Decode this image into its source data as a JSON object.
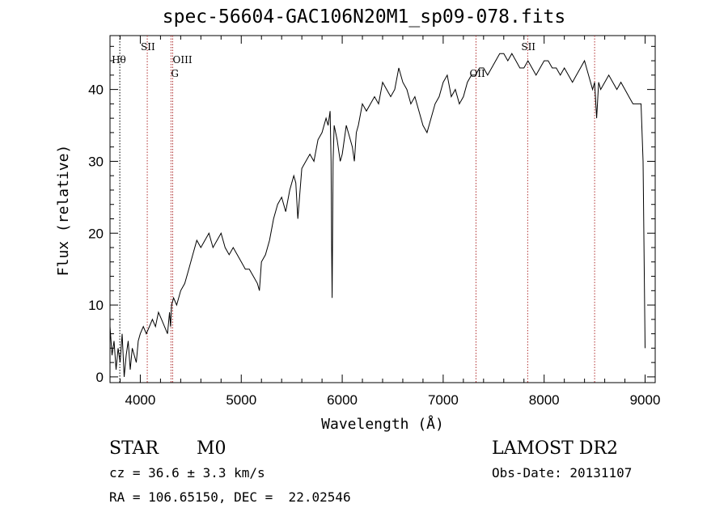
{
  "chart_data": {
    "type": "line",
    "title": "spec-56604-GAC106N20M1_sp09-078.fits",
    "xlabel": "Wavelength (Å)",
    "ylabel": "Flux (relative)",
    "xlim": [
      3700,
      9100
    ],
    "ylim": [
      -0.8,
      47.5
    ],
    "xticks": [
      4000,
      5000,
      6000,
      7000,
      8000,
      9000
    ],
    "yticks": [
      0,
      10,
      20,
      30,
      40
    ],
    "grid": false,
    "series": [
      {
        "x": [
          3700,
          3720,
          3740,
          3760,
          3780,
          3800,
          3820,
          3840,
          3860,
          3880,
          3900,
          3920,
          3940,
          3960,
          3980,
          4000,
          4030,
          4060,
          4090,
          4120,
          4150,
          4180,
          4210,
          4240,
          4270,
          4290,
          4300,
          4310,
          4330,
          4360,
          4400,
          4440,
          4480,
          4520,
          4560,
          4600,
          4640,
          4680,
          4720,
          4760,
          4800,
          4840,
          4880,
          4920,
          4960,
          5000,
          5040,
          5080,
          5120,
          5160,
          5180,
          5200,
          5240,
          5280,
          5320,
          5360,
          5400,
          5440,
          5480,
          5520,
          5540,
          5560,
          5600,
          5640,
          5680,
          5720,
          5760,
          5800,
          5840,
          5860,
          5880,
          5890,
          5895,
          5900,
          5910,
          5920,
          5950,
          5980,
          6000,
          6040,
          6080,
          6100,
          6120,
          6140,
          6160,
          6200,
          6240,
          6280,
          6320,
          6360,
          6400,
          6440,
          6480,
          6520,
          6560,
          6600,
          6640,
          6680,
          6720,
          6760,
          6800,
          6840,
          6880,
          6920,
          6960,
          7000,
          7040,
          7080,
          7120,
          7160,
          7200,
          7240,
          7280,
          7320,
          7360,
          7400,
          7440,
          7480,
          7520,
          7560,
          7600,
          7640,
          7680,
          7720,
          7760,
          7800,
          7840,
          7880,
          7920,
          7960,
          8000,
          8040,
          8080,
          8120,
          8160,
          8200,
          8240,
          8280,
          8320,
          8360,
          8400,
          8440,
          8480,
          8500,
          8520,
          8540,
          8560,
          8600,
          8640,
          8680,
          8720,
          8760,
          8800,
          8840,
          8880,
          8920,
          8960,
          8980,
          9000
        ],
        "y": [
          7,
          3,
          5,
          1,
          4,
          2,
          6,
          0,
          3,
          5,
          1,
          4,
          3,
          2,
          5,
          6,
          7,
          6,
          7,
          8,
          7,
          9,
          8,
          7,
          6,
          9,
          7,
          10,
          11,
          10,
          12,
          13,
          15,
          17,
          19,
          18,
          19,
          20,
          18,
          19,
          20,
          18,
          17,
          18,
          17,
          16,
          15,
          15,
          14,
          13,
          12,
          16,
          17,
          19,
          22,
          24,
          25,
          23,
          26,
          28,
          27,
          22,
          29,
          30,
          31,
          30,
          33,
          34,
          36,
          35,
          37,
          30,
          18,
          11,
          30,
          35,
          33,
          30,
          31,
          35,
          33,
          32,
          30,
          34,
          35,
          38,
          37,
          38,
          39,
          38,
          41,
          40,
          39,
          40,
          43,
          41,
          40,
          38,
          39,
          37,
          35,
          34,
          36,
          38,
          39,
          41,
          42,
          39,
          40,
          38,
          39,
          41,
          42,
          42,
          43,
          43,
          42,
          43,
          44,
          45,
          45,
          44,
          45,
          44,
          43,
          43,
          44,
          43,
          42,
          43,
          44,
          44,
          43,
          43,
          42,
          43,
          42,
          41,
          42,
          43,
          44,
          42,
          40,
          41,
          36,
          41,
          40,
          41,
          42,
          41,
          40,
          41,
          40,
          39,
          38,
          38,
          38,
          30,
          4
        ]
      }
    ],
    "lines": [
      {
        "label": "Hθ",
        "x": 3797
      },
      {
        "label": "SII",
        "x": 4069
      },
      {
        "label": "OIII",
        "x": 4321
      },
      {
        "label": "G",
        "x": 4304
      },
      {
        "label": "OII",
        "x": 7325
      },
      {
        "label": "SII",
        "x": 7837
      },
      {
        "label": "",
        "x": 8500
      }
    ]
  },
  "info": {
    "class_label": "STAR",
    "subclass_label": "M0",
    "survey": "LAMOST DR2",
    "cz": "cz = 36.6 ± 3.3 km/s",
    "obs_date": "Obs-Date: 20131107",
    "radec": "RA = 106.65150, DEC =  22.02546"
  },
  "colors": {
    "line": "#000000",
    "marker": "#b03030",
    "axis": "#000000"
  }
}
